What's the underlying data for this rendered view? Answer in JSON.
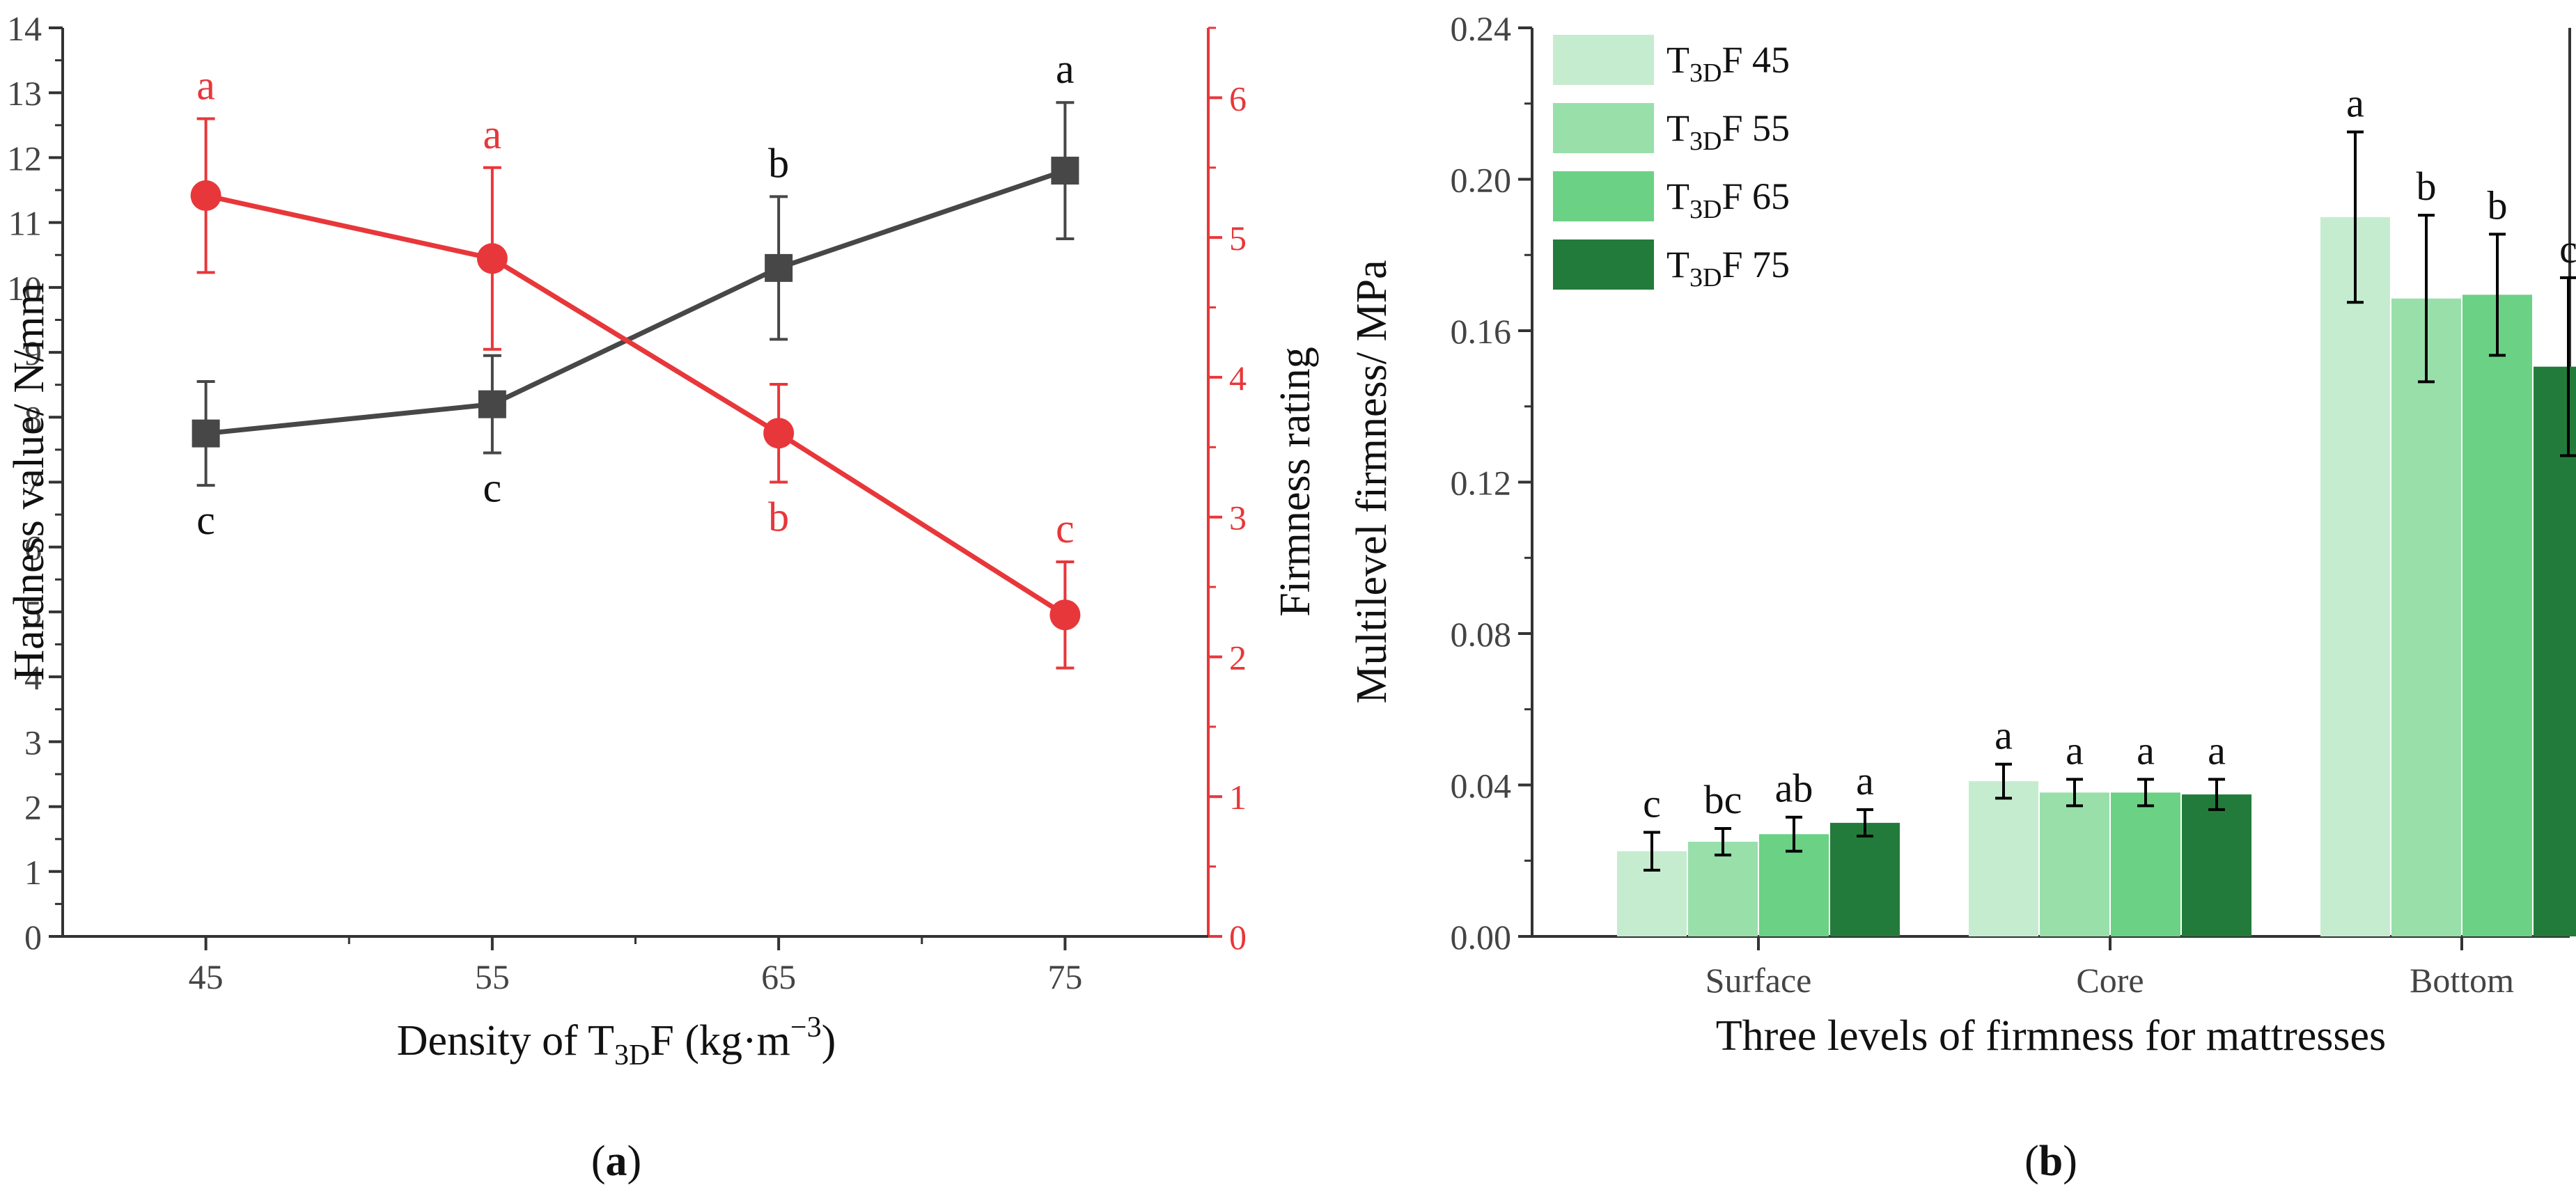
{
  "chart_data": [
    {
      "type": "line",
      "panel_label": "a",
      "xlabel_parts": [
        "Density of T",
        "3D",
        "F (kg·m",
        "−3",
        ")"
      ],
      "ylabel_left": "Hardness value/ N/mm",
      "ylabel_right": "Firmness rating",
      "categories": [
        "45",
        "55",
        "65",
        "75"
      ],
      "x_values": [
        45,
        55,
        65,
        75
      ],
      "xlim": [
        40,
        80
      ],
      "ylim_left": [
        0,
        14
      ],
      "ylim_right": [
        0,
        6.5
      ],
      "left_ticks": [
        "0",
        "1",
        "2",
        "3",
        "4",
        "5",
        "6",
        "7",
        "8",
        "9",
        "10",
        "11",
        "12",
        "13",
        "14"
      ],
      "right_ticks": [
        "0",
        "1",
        "2",
        "3",
        "4",
        "5",
        "6"
      ],
      "colors": {
        "hardness": "#474747",
        "firmness": "#e8373a"
      },
      "series": [
        {
          "name": "Hardness value",
          "axis": "left",
          "marker": "square",
          "values": [
            7.75,
            8.2,
            10.3,
            11.8
          ],
          "errors": [
            0.8,
            0.75,
            1.1,
            1.05
          ],
          "letters": [
            "c",
            "c",
            "b",
            "a"
          ],
          "letter_side": [
            "below",
            "below",
            "above",
            "above"
          ]
        },
        {
          "name": "Firmness rating",
          "axis": "right",
          "marker": "circle",
          "values": [
            5.3,
            4.85,
            3.6,
            2.3
          ],
          "errors": [
            0.55,
            0.65,
            0.35,
            0.38
          ],
          "letters": [
            "a",
            "a",
            "b",
            "c"
          ],
          "letter_side": [
            "above",
            "above",
            "below",
            "above"
          ]
        }
      ]
    },
    {
      "type": "bar",
      "panel_label": "b",
      "xlabel": "Three levels of firmness for mattresses",
      "ylabel": "Multilevel firmness/ MPa",
      "categories": [
        "Surface",
        "Core",
        "Bottom"
      ],
      "ylim": [
        0,
        0.24
      ],
      "y_ticks": [
        "0.00",
        "0.04",
        "0.08",
        "0.12",
        "0.16",
        "0.20",
        "0.24"
      ],
      "legend_position": "top-left",
      "series": [
        {
          "name_parts": [
            "T",
            "3D",
            "F 45"
          ],
          "color": "#c6eccf",
          "values": [
            0.0225,
            0.041,
            0.19
          ],
          "errors": [
            0.005,
            0.0045,
            0.0225
          ],
          "letters": [
            "c",
            "a",
            "a"
          ]
        },
        {
          "name_parts": [
            "T",
            "3D",
            "F 55"
          ],
          "color": "#98dfaa",
          "values": [
            0.025,
            0.038,
            0.1685
          ],
          "errors": [
            0.0035,
            0.0035,
            0.022
          ],
          "letters": [
            "bc",
            "a",
            "b"
          ]
        },
        {
          "name_parts": [
            "T",
            "3D",
            "F 65"
          ],
          "color": "#6bd184",
          "values": [
            0.027,
            0.038,
            0.1695
          ],
          "errors": [
            0.0045,
            0.0035,
            0.016
          ],
          "letters": [
            "ab",
            "a",
            "b"
          ]
        },
        {
          "name_parts": [
            "T",
            "3D",
            "F 75"
          ],
          "color": "#237b3b",
          "values": [
            0.03,
            0.0375,
            0.1505
          ],
          "errors": [
            0.0035,
            0.004,
            0.0235
          ],
          "letters": [
            "a",
            "a",
            "c"
          ]
        }
      ]
    }
  ]
}
